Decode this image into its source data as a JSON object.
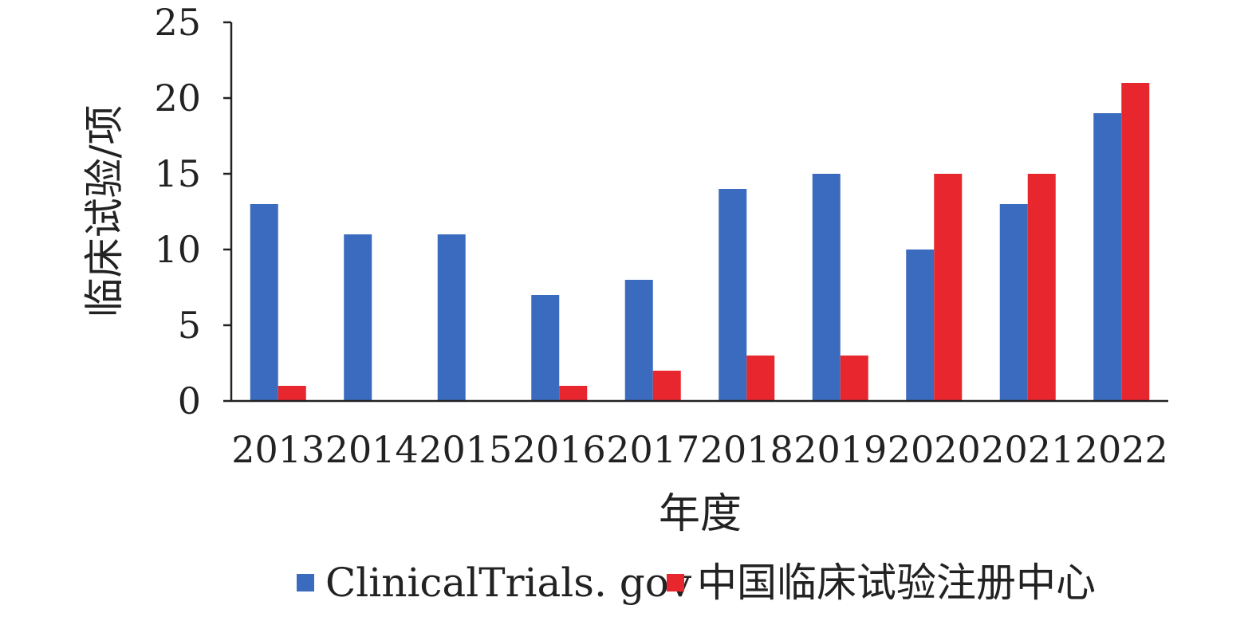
{
  "chart_data": {
    "type": "bar",
    "title": "",
    "xlabel": "年度",
    "ylabel": "临床试验/项",
    "ylim": [
      0,
      25
    ],
    "yticks": [
      0,
      5,
      10,
      15,
      20,
      25
    ],
    "categories": [
      "2013",
      "2014",
      "2015",
      "2016",
      "2017",
      "2018",
      "2019",
      "2020",
      "2021",
      "2022"
    ],
    "series": [
      {
        "name": "ClinicalTrials. gov",
        "color": "#3A6BBE",
        "values": [
          13,
          11,
          11,
          7,
          8,
          14,
          15,
          10,
          13,
          19
        ]
      },
      {
        "name": "中国临床试验注册中心",
        "color": "#E8262D",
        "values": [
          1,
          0,
          0,
          1,
          2,
          3,
          3,
          15,
          15,
          21
        ]
      }
    ],
    "grid": false,
    "legend": "bottom"
  }
}
